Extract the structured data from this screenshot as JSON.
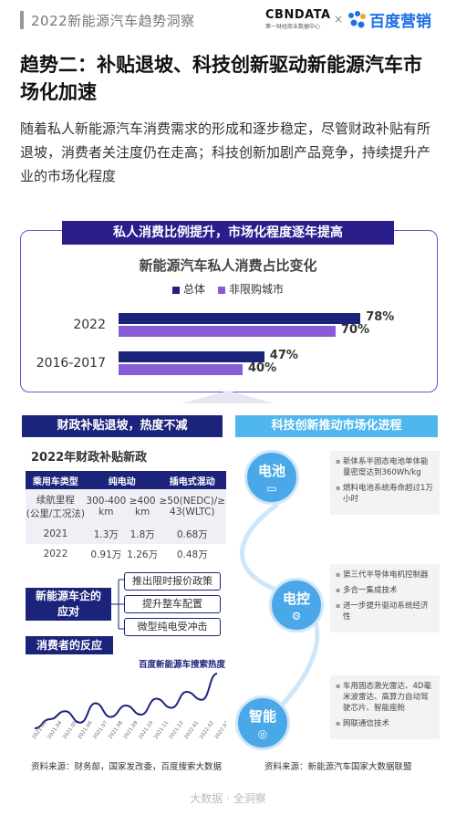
{
  "header": {
    "title": "2022新能源汽车趋势洞察",
    "logo_cbn": "CBNDATA",
    "logo_cbn_sub": "第一财经商业数据中心",
    "times": "×",
    "logo_baidu": "百度营销"
  },
  "heading": "趋势二：补贴退坡、科技创新驱动新能源汽车市场化加速",
  "intro": "随着私人新能源汽车消费需求的形成和逐步稳定，尽管财政补贴有所退坡，消费者关注度仍在走高；科技创新加剧产品竞争，持续提升产业的市场化程度",
  "section1": {
    "banner": "私人消费比例提升，市场化程度逐年提高"
  },
  "chart_data": {
    "type": "bar",
    "orientation": "horizontal",
    "title": "新能源汽车私人消费占比变化",
    "categories": [
      "2022",
      "2016-2017"
    ],
    "series": [
      {
        "name": "总体",
        "values": [
          78,
          47
        ],
        "labels": [
          "78%",
          "47%"
        ],
        "color": "#1b237a"
      },
      {
        "name": "非限购城市",
        "values": [
          70,
          40
        ],
        "labels": [
          "70%",
          "40%"
        ],
        "color": "#8a5bd6"
      }
    ],
    "xlim": [
      0,
      100
    ],
    "legend": "top-center",
    "grid": false
  },
  "left": {
    "banner": "财政补贴退坡，热度不减",
    "subtitle": "2022年财政补贴新政",
    "table": {
      "headers": [
        "乘用车类型",
        "纯电动",
        "插电式混动"
      ],
      "rows": [
        [
          "续航里程\n(公里/工况法)",
          "300-400\nkm",
          "≥400\nkm",
          "≥50(NEDC)/≥\n43(WLTC)"
        ],
        [
          "2021",
          "1.3万",
          "1.8万",
          "0.68万"
        ],
        [
          "2022",
          "0.91万",
          "1.26万",
          "0.48万"
        ]
      ]
    },
    "policy_label": "新能源车企的\n应对",
    "policy_items": [
      "推出限时报价政策",
      "提升整车配置",
      "微型纯电受冲击"
    ],
    "consumer_label": "消费者的反应",
    "trend_title": "百度新能源车搜索热度",
    "trend_dates": [
      "2021.03",
      "2021.04",
      "2021.05",
      "2021.06",
      "2021.07",
      "2021.08",
      "2021.09",
      "2021.10",
      "2021.11",
      "2021.12",
      "2022.01",
      "2022.02",
      "2022.03"
    ],
    "trend_values": [
      30,
      38,
      45,
      35,
      52,
      40,
      50,
      42,
      56,
      48,
      62,
      55,
      78
    ],
    "source": "资料来源：财务部，国家发改委，百度搜索大数据"
  },
  "right": {
    "banner": "科技创新推动市场化进程",
    "groups": [
      {
        "label": "电池",
        "icon": "battery-icon",
        "items": [
          "新体系半固态电池单体能量密度达到360Wh/kg",
          "燃料电池系统寿命超过1万小时"
        ]
      },
      {
        "label": "电控",
        "icon": "controller-icon",
        "items": [
          "第三代半导体电机控制器",
          "多合一集成技术",
          "进一步提升驱动系统经济性"
        ]
      },
      {
        "label": "智能",
        "icon": "steering-icon",
        "items": [
          "车用固态激光雷达、4D毫米波雷达、高算力自动驾驶芯片、智能座舱",
          "网联通信技术"
        ]
      }
    ],
    "source": "资料来源：新能源汽车国家大数据联盟"
  },
  "footer": "大数据 · 全洞察"
}
